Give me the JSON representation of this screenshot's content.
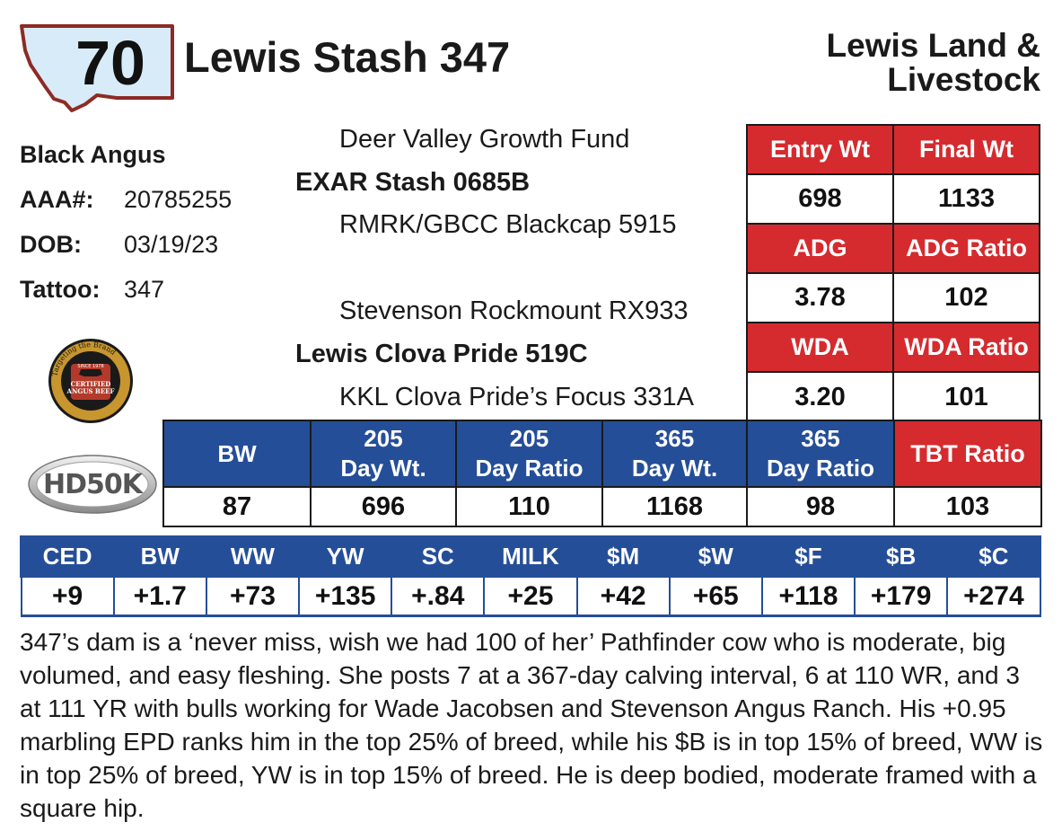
{
  "header": {
    "lot_number": "70",
    "animal_name": "Lewis Stash 347",
    "consignor_line1": "Lewis Land &",
    "consignor_line2": "Livestock"
  },
  "info": {
    "breed": "Black Angus",
    "aaa_label": "AAA#:",
    "aaa_value": "20785255",
    "dob_label": "DOB:",
    "dob_value": "03/19/23",
    "tattoo_label": "Tattoo:",
    "tattoo_value": "347"
  },
  "pedigree": {
    "sire_sire": "Deer Valley Growth Fund",
    "sire": "EXAR Stash 0685B",
    "sire_dam": "RMRK/GBCC Blackcap 5915",
    "dam_sire": "Stevenson Rockmount RX933",
    "dam": "Lewis Clova Pride 519C",
    "dam_dam": "KKL Clova Pride’s Focus 331A"
  },
  "logos": {
    "cab_ring_text": "Targeting the Brand",
    "cab_line1": "CERTIFIED",
    "cab_line2": "ANGUS BEEF",
    "cab_year": "SINCE 1978",
    "hd50k": "HD50K"
  },
  "performance": {
    "entry_wt_label": "Entry Wt",
    "final_wt_label": "Final Wt",
    "entry_wt": "698",
    "final_wt": "1133",
    "adg_label": "ADG",
    "adg_ratio_label": "ADG Ratio",
    "adg": "3.78",
    "adg_ratio": "102",
    "wda_label": "WDA",
    "wda_ratio_label": "WDA Ratio",
    "wda": "3.20",
    "wda_ratio": "101"
  },
  "ratios": {
    "headers": [
      {
        "line1": "BW",
        "line2": ""
      },
      {
        "line1": "205",
        "line2": "Day Wt."
      },
      {
        "line1": "205",
        "line2": "Day Ratio"
      },
      {
        "line1": "365",
        "line2": "Day Wt."
      },
      {
        "line1": "365",
        "line2": "Day Ratio"
      },
      {
        "line1": "TBT Ratio",
        "line2": ""
      }
    ],
    "values": [
      "87",
      "696",
      "110",
      "1168",
      "98",
      "103"
    ]
  },
  "epds": {
    "headers": [
      "CED",
      "BW",
      "WW",
      "YW",
      "SC",
      "MILK",
      "$M",
      "$W",
      "$F",
      "$B",
      "$C"
    ],
    "values": [
      "+9",
      "+1.7",
      "+73",
      "+135",
      "+.84",
      "+25",
      "+42",
      "+65",
      "+118",
      "+179",
      "+274"
    ]
  },
  "description": "347’s dam is a ‘never miss, wish we had 100 of her’ Pathfinder cow who is moderate, big volumed, and easy fleshing.  She posts 7 at a 367-day calving interval, 6 at 110 WR, and 3 at 111 YR with bulls working for Wade Jacobsen and Stevenson Angus Ranch.  His +0.95 marbling EPD ranks him in the top 25% of breed, while his $B is in top 15% of breed, WW is in top 25% of breed, YW is in top 15% of breed.  He is deep bodied, moderate framed with a square hip.",
  "colors": {
    "red": "#d52b2f",
    "blue": "#254e99",
    "montana_fill": "#d8ebf8",
    "montana_border": "#8c2b24"
  }
}
